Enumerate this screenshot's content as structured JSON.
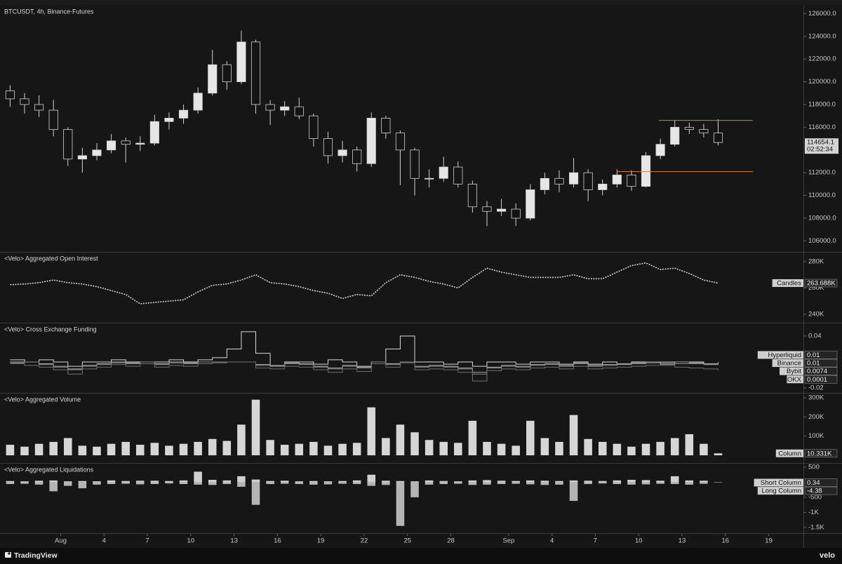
{
  "time": {
    "x": [
      -2.5,
      -1.5,
      -0.5,
      0.5,
      1.5,
      2.5,
      3.5,
      4.5,
      5.5,
      6.5,
      7.5,
      8.5,
      9.5,
      10.5,
      11.5,
      12.5,
      13.5,
      14.5,
      15.5,
      16.5,
      17.5,
      18.5,
      19.5,
      20.5,
      21.5,
      22.5,
      23.5,
      24.5,
      25.5,
      26.5,
      27.5,
      28.5,
      29.5,
      30.5,
      31.5,
      32.5,
      33.5,
      34.5,
      35.5,
      36.5,
      37.5,
      38.5,
      39.5,
      40.5,
      41.5,
      42.5,
      43.5,
      44.5,
      45.5,
      46.5
    ],
    "xlim": [
      -3.2,
      52.4
    ],
    "xticks": [
      {
        "value": 1,
        "label": "Aug"
      },
      4,
      7,
      10,
      13,
      16,
      19,
      22,
      25,
      28,
      {
        "value": 32,
        "label": "Sep"
      },
      {
        "value": 35,
        "label": "4"
      },
      {
        "value": 38,
        "label": "7"
      },
      {
        "value": 41,
        "label": "10"
      },
      {
        "value": 44,
        "label": "13"
      },
      {
        "value": 47,
        "label": "16"
      },
      {
        "value": 50,
        "label": "19"
      }
    ]
  },
  "countdown": "02:52:34",
  "footer": {
    "brand": "TradingView",
    "source": "velo"
  },
  "chart_data": [
    {
      "type": "candlestick",
      "title": "BTCUSDT, 4h, Binance-Futures",
      "open": [
        119200,
        118500,
        118000,
        117500,
        115800,
        113200,
        113500,
        114000,
        114800,
        114500,
        114600,
        116500,
        116800,
        117500,
        119000,
        121500,
        120000,
        123500,
        118000,
        117500,
        117800,
        117000,
        115000,
        113500,
        114000,
        112800,
        116800,
        115500,
        114000,
        111500,
        111500,
        112500,
        111000,
        109000,
        108600,
        108800,
        108000,
        110500,
        111500,
        111000,
        112000,
        110500,
        111000,
        111800,
        110800,
        113500,
        114500,
        116000,
        115800,
        115500
      ],
      "high": [
        119700,
        119000,
        118800,
        118400,
        116000,
        114200,
        114600,
        115400,
        115100,
        115200,
        117100,
        117300,
        118000,
        119500,
        122800,
        121800,
        124500,
        123700,
        118400,
        118300,
        118600,
        117200,
        115600,
        114800,
        114300,
        117300,
        117000,
        115700,
        114200,
        112300,
        113400,
        113000,
        111300,
        109500,
        109700,
        109300,
        111000,
        112000,
        112200,
        113300,
        112300,
        111400,
        112300,
        112200,
        113800,
        115000,
        116600,
        116400,
        116300,
        116700
      ],
      "low": [
        117800,
        117200,
        116900,
        115200,
        112600,
        112000,
        113100,
        113700,
        112900,
        113900,
        114400,
        115800,
        116300,
        117200,
        118800,
        119300,
        119800,
        117200,
        116200,
        117000,
        116700,
        114300,
        112800,
        112900,
        112100,
        112500,
        115000,
        110900,
        110000,
        110700,
        111200,
        110700,
        108500,
        107300,
        108200,
        107300,
        107800,
        110100,
        110300,
        110700,
        109500,
        110000,
        110700,
        110400,
        110700,
        113200,
        114300,
        115400,
        115100,
        114400
      ],
      "close": [
        118500,
        118000,
        117500,
        115800,
        113200,
        113500,
        114000,
        114800,
        114500,
        114600,
        116500,
        116800,
        117500,
        119000,
        121500,
        120000,
        123500,
        118000,
        117500,
        117800,
        117000,
        115000,
        113500,
        114000,
        112800,
        116800,
        115500,
        114000,
        111500,
        111500,
        112500,
        111000,
        109000,
        108600,
        108800,
        108000,
        110500,
        111500,
        111000,
        112000,
        110500,
        111000,
        111800,
        110800,
        113500,
        114500,
        116000,
        115800,
        115500,
        114654.1
      ],
      "up_color": "#e6e6e6",
      "down_color": "#141414",
      "wick_color": "#d0d0d0",
      "levels": [
        {
          "value": 116600,
          "start": 42.4,
          "end": 48.9
        },
        {
          "value": 112100,
          "start": 39.5,
          "end": 48.9
        }
      ],
      "level_color": "#d9822b",
      "ylim": [
        105100,
        126700
      ],
      "yticks": [
        {
          "value": 126000,
          "label": "126000.0"
        },
        {
          "value": 124000,
          "label": "124000.0"
        },
        {
          "value": 122000,
          "label": "122000.0"
        },
        {
          "value": 120000,
          "label": "120000.0"
        },
        {
          "value": 118000,
          "label": "118000.0"
        },
        {
          "value": 116000,
          "label": "116000.0"
        },
        {
          "value": 112000,
          "label": "112000.0"
        },
        {
          "value": 110000,
          "label": "110000.0"
        },
        {
          "value": 108000,
          "label": "108000.0"
        },
        {
          "value": 106000,
          "label": "106000.0"
        }
      ]
    },
    {
      "type": "line",
      "title": "<Velo> Aggregated Open Interest",
      "name": "Candles",
      "color": "#cfcfcf",
      "values": [
        262.5,
        263,
        264,
        266,
        264,
        263,
        261,
        258,
        255,
        248,
        249,
        250,
        251,
        257,
        262,
        263,
        266,
        270,
        264,
        263,
        261,
        258,
        256,
        252,
        255,
        254,
        264,
        270,
        268,
        265,
        263,
        260,
        268,
        275,
        272,
        270,
        268,
        268,
        268,
        270,
        267,
        267,
        272,
        277,
        279,
        274,
        275,
        271,
        266,
        263.688
      ],
      "value_labels": [
        null,
        null,
        null,
        null,
        null,
        null,
        null,
        null,
        null,
        null,
        null,
        null,
        null,
        null,
        null,
        null,
        null,
        null,
        null,
        null,
        null,
        null,
        null,
        null,
        null,
        null,
        null,
        null,
        null,
        null,
        null,
        null,
        null,
        null,
        null,
        null,
        null,
        null,
        null,
        null,
        null,
        null,
        null,
        null,
        null,
        null,
        null,
        null,
        null,
        "263.688K"
      ],
      "ylim": [
        233.6,
        286.9
      ],
      "yticks": [
        {
          "value": 280,
          "label": "280K"
        },
        {
          "value": 260,
          "label": "260K"
        },
        {
          "value": 240,
          "label": "240K"
        }
      ]
    },
    {
      "type": "step",
      "title": "<Velo> Cross Exchange Funding",
      "series": [
        {
          "name": "Hyperliquid",
          "color": "#d8d8d8",
          "values": [
            0.0125,
            0.01,
            0.0125,
            0.01,
            0.005,
            0.01,
            0.01,
            0.0125,
            0.01,
            0.01,
            0.01,
            0.0125,
            0.01,
            0.0125,
            0.015,
            0.025,
            0.045,
            0.02,
            0.005,
            0.01,
            0.01,
            0.0075,
            0.0125,
            0.01,
            0.005,
            0.01,
            0.025,
            0.04,
            0.01,
            0.01,
            0.0075,
            0.01,
            0.005,
            0.01,
            0.01,
            0.0075,
            0.01,
            0.01,
            0.0075,
            0.01,
            0.0075,
            0.01,
            0.0075,
            0.01,
            0.01,
            0.0075,
            0.01,
            0.01,
            0.0075,
            0.01
          ]
        },
        {
          "name": "Binance",
          "color": "#a8a8a8",
          "values": [
            0.01,
            0.01,
            0.008,
            0.005,
            0.002,
            0.006,
            0.008,
            0.01,
            0.009,
            0.01,
            0.008,
            0.01,
            0.009,
            0.01,
            0.01,
            0.01,
            0.01,
            0.007,
            0.006,
            0.009,
            0.008,
            0.005,
            0.003,
            0.006,
            0.004,
            0.01,
            0.008,
            0.01,
            0.005,
            0.006,
            0.005,
            0.003,
            -0.002,
            0.004,
            0.006,
            0.005,
            0.007,
            0.008,
            0.006,
            0.009,
            0.006,
            0.007,
            0.008,
            0.009,
            0.01,
            0.01,
            0.01,
            0.009,
            0.008,
            0.01
          ]
        },
        {
          "name": "Bybit",
          "color": "#8c8c8c",
          "values": [
            0.009,
            0.01,
            0.007,
            0.004,
            0.001,
            0.005,
            0.007,
            0.009,
            0.008,
            0.01,
            0.007,
            0.009,
            0.008,
            0.01,
            0.01,
            0.01,
            0.01,
            0.006,
            0.005,
            0.008,
            0.007,
            0.004,
            0.002,
            0.005,
            0.003,
            0.01,
            0.007,
            0.01,
            0.004,
            0.005,
            0.004,
            0.002,
            -0.004,
            0.003,
            0.005,
            0.004,
            0.006,
            0.007,
            0.005,
            0.008,
            0.005,
            0.006,
            0.007,
            0.008,
            0.009,
            0.009,
            0.008,
            0.008,
            0.007,
            0.0074
          ]
        },
        {
          "name": "OKX",
          "color": "#707070",
          "values": [
            0.008,
            0.006,
            0.004,
            0.001,
            -0.004,
            0.002,
            0.004,
            0.007,
            0.005,
            0.008,
            0.004,
            0.006,
            0.005,
            0.008,
            0.009,
            0.01,
            0.01,
            0.003,
            0.002,
            0.005,
            0.004,
            0.001,
            -0.002,
            0.002,
            -0.001,
            0.008,
            0.004,
            0.009,
            0.001,
            0.002,
            0.001,
            -0.002,
            -0.012,
            0.0,
            0.002,
            0.001,
            0.003,
            0.004,
            0.002,
            0.005,
            0.002,
            0.003,
            0.004,
            0.005,
            0.006,
            0.006,
            0.004,
            0.003,
            0.002,
            0.0001
          ]
        }
      ],
      "ylim": [
        -0.0257,
        0.0546
      ],
      "yticks": [
        0.04,
        -0.02
      ]
    },
    {
      "type": "bar",
      "title": "<Velo> Aggregated Volume",
      "name": "Column",
      "color": "#d6d6d6",
      "values": [
        55,
        45,
        60,
        70,
        90,
        50,
        45,
        60,
        70,
        55,
        65,
        50,
        60,
        70,
        85,
        75,
        160,
        290,
        80,
        55,
        60,
        70,
        50,
        60,
        65,
        250,
        90,
        160,
        120,
        80,
        70,
        65,
        180,
        70,
        60,
        50,
        180,
        90,
        70,
        210,
        85,
        70,
        60,
        45,
        60,
        70,
        90,
        110,
        60,
        10.331
      ],
      "value_labels": [
        null,
        null,
        null,
        null,
        null,
        null,
        null,
        null,
        null,
        null,
        null,
        null,
        null,
        null,
        null,
        null,
        null,
        null,
        null,
        null,
        null,
        null,
        null,
        null,
        null,
        null,
        null,
        null,
        null,
        null,
        null,
        null,
        null,
        null,
        null,
        null,
        null,
        null,
        null,
        null,
        null,
        null,
        null,
        null,
        null,
        null,
        null,
        null,
        null,
        "10.331K"
      ],
      "ylim": [
        -40,
        322
      ],
      "yticks": [
        {
          "value": 300,
          "label": "300K"
        },
        {
          "value": 200,
          "label": "200K"
        },
        {
          "value": 100,
          "label": "100K"
        }
      ]
    },
    {
      "type": "bars",
      "title": "<Velo> Aggregated Liquidations",
      "series": [
        {
          "name": "Short Column",
          "color": "#d0d0d0",
          "values": [
            40,
            30,
            50,
            60,
            30,
            40,
            30,
            60,
            40,
            50,
            50,
            40,
            60,
            350,
            80,
            60,
            200,
            90,
            40,
            50,
            30,
            40,
            30,
            40,
            60,
            250,
            50,
            40,
            30,
            60,
            40,
            30,
            60,
            70,
            50,
            40,
            60,
            50,
            40,
            60,
            50,
            40,
            60,
            80,
            70,
            50,
            200,
            60,
            50,
            0.34
          ]
        },
        {
          "name": "Long Column",
          "color": "#b4b4b4",
          "values": [
            -60,
            -50,
            -80,
            -300,
            -120,
            -200,
            -80,
            -60,
            -50,
            -70,
            -60,
            -40,
            -60,
            -80,
            -90,
            -60,
            -150,
            -750,
            -60,
            -50,
            -60,
            -80,
            -70,
            -50,
            -60,
            -120,
            -90,
            -1450,
            -500,
            -80,
            -60,
            -50,
            -90,
            -80,
            -60,
            -50,
            -70,
            -90,
            -80,
            -620,
            -60,
            -40,
            -60,
            -80,
            -70,
            -50,
            -60,
            -80,
            -50,
            -4.38
          ]
        }
      ],
      "ylim": [
        -1690,
        616
      ],
      "yticks": [
        500,
        -500,
        {
          "value": -1000,
          "label": "-1K"
        },
        {
          "value": -1500,
          "label": "-1.5K"
        }
      ]
    }
  ]
}
